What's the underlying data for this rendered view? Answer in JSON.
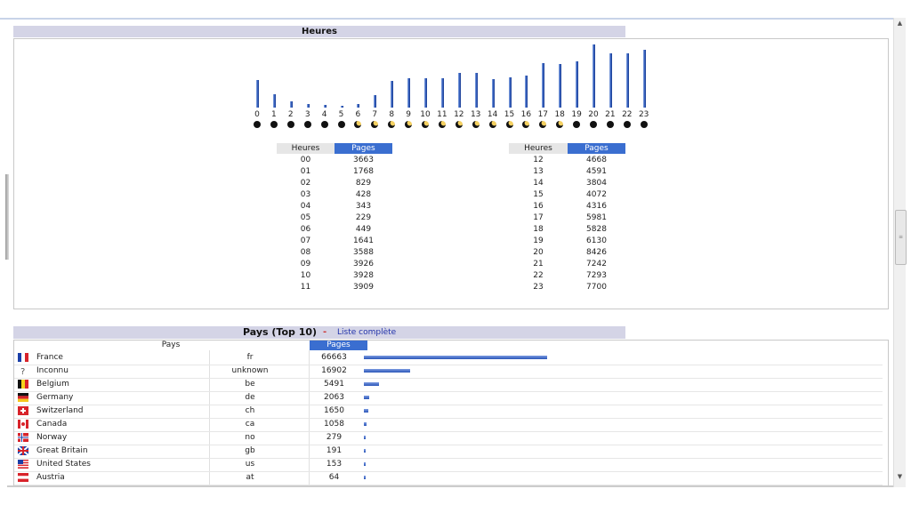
{
  "hours_section": {
    "title": "Heures",
    "chart_data": {
      "type": "bar",
      "title": "Heures",
      "categories": [
        "0",
        "1",
        "2",
        "3",
        "4",
        "5",
        "6",
        "7",
        "8",
        "9",
        "10",
        "11",
        "12",
        "13",
        "14",
        "15",
        "16",
        "17",
        "18",
        "19",
        "20",
        "21",
        "22",
        "23"
      ],
      "values": [
        3663,
        1768,
        829,
        428,
        343,
        229,
        449,
        1641,
        3588,
        3926,
        3928,
        3909,
        4668,
        4591,
        3804,
        4072,
        4316,
        5981,
        5828,
        6130,
        8426,
        7242,
        7293,
        7700
      ],
      "daytime_hours": [
        6,
        7,
        8,
        9,
        10,
        11,
        12,
        13,
        14,
        15,
        16,
        17,
        18
      ]
    },
    "table_left": {
      "col_hours": "Heures",
      "col_pages": "Pages",
      "rows": [
        {
          "h": "00",
          "p": "3663"
        },
        {
          "h": "01",
          "p": "1768"
        },
        {
          "h": "02",
          "p": "829"
        },
        {
          "h": "03",
          "p": "428"
        },
        {
          "h": "04",
          "p": "343"
        },
        {
          "h": "05",
          "p": "229"
        },
        {
          "h": "06",
          "p": "449"
        },
        {
          "h": "07",
          "p": "1641"
        },
        {
          "h": "08",
          "p": "3588"
        },
        {
          "h": "09",
          "p": "3926"
        },
        {
          "h": "10",
          "p": "3928"
        },
        {
          "h": "11",
          "p": "3909"
        }
      ]
    },
    "table_right": {
      "col_hours": "Heures",
      "col_pages": "Pages",
      "rows": [
        {
          "h": "12",
          "p": "4668"
        },
        {
          "h": "13",
          "p": "4591"
        },
        {
          "h": "14",
          "p": "3804"
        },
        {
          "h": "15",
          "p": "4072"
        },
        {
          "h": "16",
          "p": "4316"
        },
        {
          "h": "17",
          "p": "5981"
        },
        {
          "h": "18",
          "p": "5828"
        },
        {
          "h": "19",
          "p": "6130"
        },
        {
          "h": "20",
          "p": "8426"
        },
        {
          "h": "21",
          "p": "7242"
        },
        {
          "h": "22",
          "p": "7293"
        },
        {
          "h": "23",
          "p": "7700"
        }
      ]
    }
  },
  "countries_section": {
    "title": "Pays (Top 10)",
    "separator": "-",
    "full_list_link": "Liste complète",
    "col_country": "Pays",
    "col_pages": "Pages",
    "rows": [
      {
        "name": "France",
        "code": "fr",
        "pages": "66663",
        "value": 66663,
        "flag": "fr"
      },
      {
        "name": "Inconnu",
        "code": "unknown",
        "pages": "16902",
        "value": 16902,
        "flag": "unknown"
      },
      {
        "name": "Belgium",
        "code": "be",
        "pages": "5491",
        "value": 5491,
        "flag": "be"
      },
      {
        "name": "Germany",
        "code": "de",
        "pages": "2063",
        "value": 2063,
        "flag": "de"
      },
      {
        "name": "Switzerland",
        "code": "ch",
        "pages": "1650",
        "value": 1650,
        "flag": "ch"
      },
      {
        "name": "Canada",
        "code": "ca",
        "pages": "1058",
        "value": 1058,
        "flag": "ca"
      },
      {
        "name": "Norway",
        "code": "no",
        "pages": "279",
        "value": 279,
        "flag": "no"
      },
      {
        "name": "Great Britain",
        "code": "gb",
        "pages": "191",
        "value": 191,
        "flag": "gb"
      },
      {
        "name": "United States",
        "code": "us",
        "pages": "153",
        "value": 153,
        "flag": "us"
      },
      {
        "name": "Austria",
        "code": "at",
        "pages": "64",
        "value": 64,
        "flag": "at"
      }
    ]
  },
  "colors": {
    "header_bg": "#d4d4e6",
    "accent_blue": "#3a6ed0",
    "bar_blue": "#2a55b8"
  }
}
